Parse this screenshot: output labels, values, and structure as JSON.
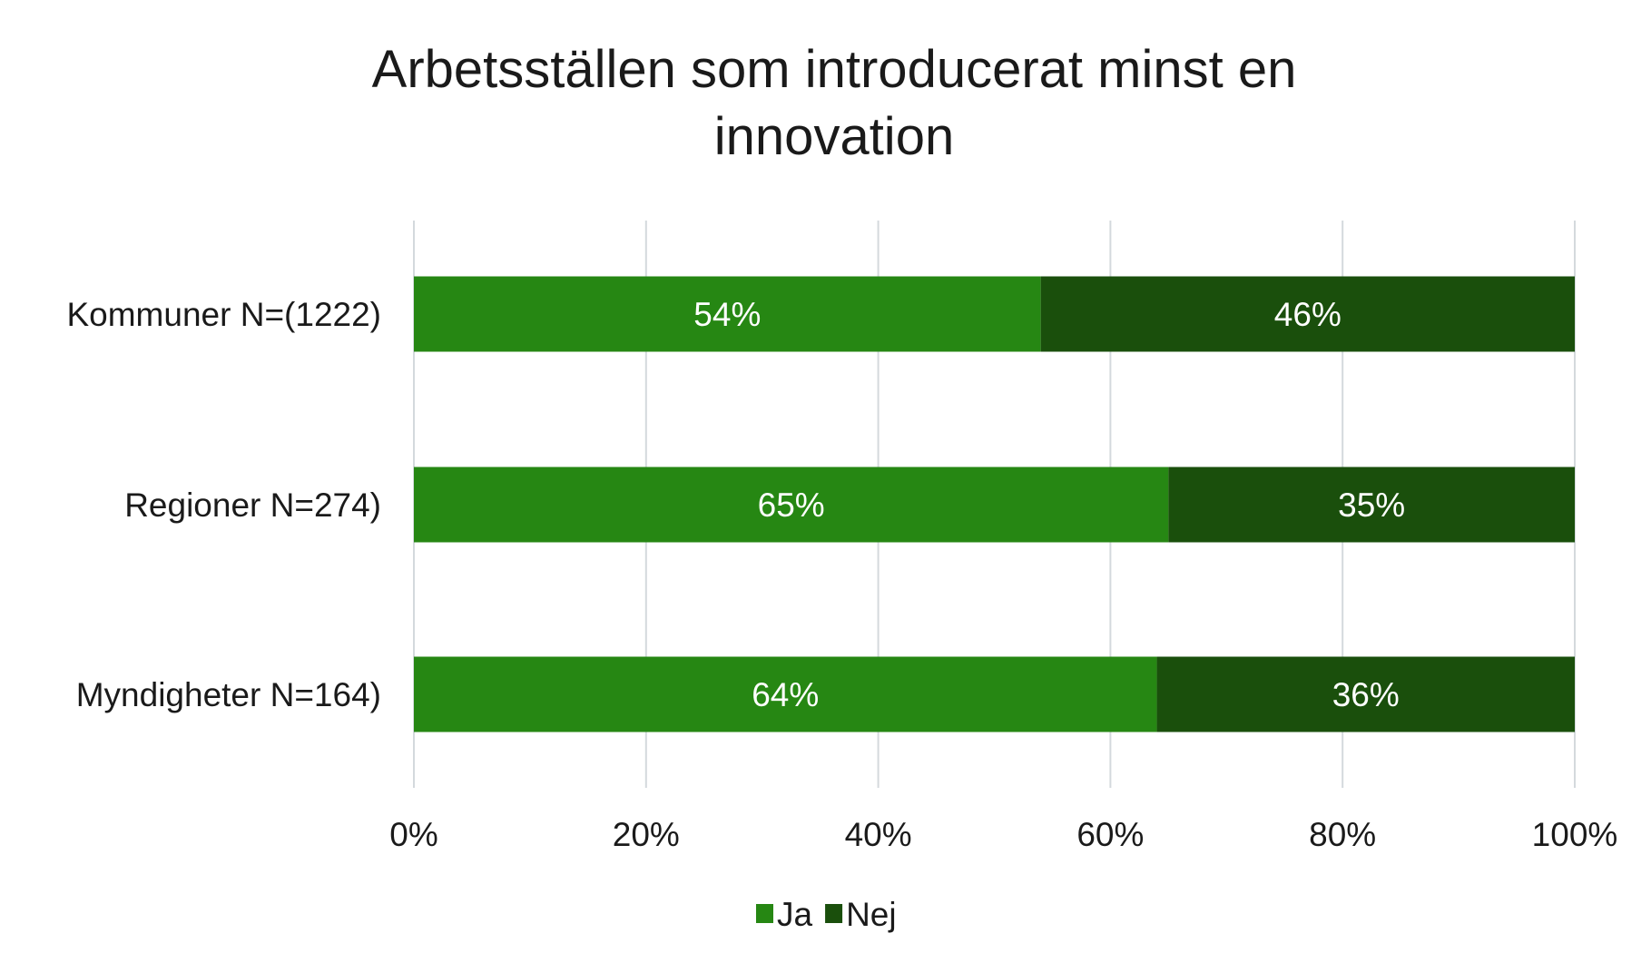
{
  "chart_data": {
    "type": "bar",
    "orientation": "horizontal",
    "stacked": true,
    "title": "Arbetsställen som introducerat minst en innovation",
    "title_lines": [
      "Arbetsställen som introducerat minst en",
      "innovation"
    ],
    "categories": [
      "Kommuner N=(1222)",
      "Regioner N=274)",
      "Myndigheter N=164)"
    ],
    "series": [
      {
        "name": "Ja",
        "color": "#268713",
        "values": [
          54,
          65,
          64
        ],
        "labels": [
          "54%",
          "65%",
          "64%"
        ]
      },
      {
        "name": "Nej",
        "color": "#1a4f0c",
        "values": [
          46,
          35,
          36
        ],
        "labels": [
          "46%",
          "35%",
          "36%"
        ]
      }
    ],
    "xlim": [
      0,
      100
    ],
    "xticks": [
      "0%",
      "20%",
      "40%",
      "60%",
      "80%",
      "100%"
    ],
    "grid": "vertical",
    "grid_color": "#d4d9dd",
    "legend": "bottom"
  }
}
